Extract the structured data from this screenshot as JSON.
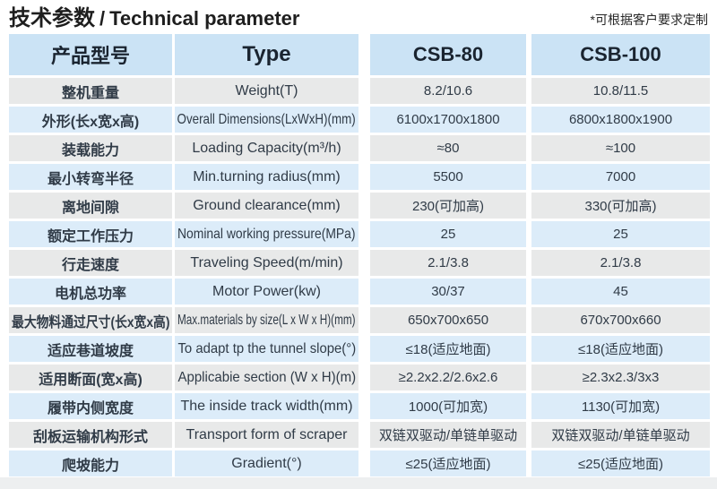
{
  "page": {
    "title_cn": "技术参数",
    "title_sep": "/",
    "title_en": "Technical parameter",
    "note": "*可根据客户要求定制"
  },
  "colors": {
    "header_bg": "#cbe3f5",
    "row_blue": "#dcecf9",
    "row_gray": "#e8e9e9",
    "gap_white": "#ffffff",
    "title_text": "#1e1e1e",
    "header_text": "#1a2430",
    "cell_text": "#303b47",
    "bottom_strip": "#edeff0"
  },
  "table": {
    "columns": [
      "产品型号",
      "Type",
      "CSB-80",
      "CSB-100"
    ],
    "rows": [
      {
        "cn": "整机重量",
        "en": "Weight(T)",
        "csb80": "8.2/10.6",
        "csb100": "10.8/11.5"
      },
      {
        "cn": "外形(长x宽x高)",
        "en": "Overall Dimensions(LxWxH)(mm)",
        "csb80": "6100x1700x1800",
        "csb100": "6800x1800x1900"
      },
      {
        "cn": "装载能力",
        "en": "Loading Capacity(m³/h)",
        "csb80": "≈80",
        "csb100": "≈100"
      },
      {
        "cn": "最小转弯半径",
        "en": "Min.turning radius(mm)",
        "csb80": "5500",
        "csb100": "7000"
      },
      {
        "cn": "离地间隙",
        "en": "Ground clearance(mm)",
        "csb80": "230(可加高)",
        "csb100": "330(可加高)"
      },
      {
        "cn": "额定工作压力",
        "en": "Nominal working pressure(MPa)",
        "csb80": "25",
        "csb100": "25"
      },
      {
        "cn": "行走速度",
        "en": "Traveling Speed(m/min)",
        "csb80": "2.1/3.8",
        "csb100": "2.1/3.8"
      },
      {
        "cn": "电机总功率",
        "en": "Motor Power(kw)",
        "csb80": "30/37",
        "csb100": "45"
      },
      {
        "cn": "最大物料通过尺寸(长x宽x高)",
        "en": "Max.materials by size(L x W x H)(mm)",
        "csb80": "650x700x650",
        "csb100": "670x700x660"
      },
      {
        "cn": "适应巷道坡度",
        "en": "To adapt tp the tunnel slope(°)",
        "csb80": "≤18(适应地面)",
        "csb100": "≤18(适应地面)"
      },
      {
        "cn": "适用断面(宽x高)",
        "en": "Applicabie section (W x H)(m)",
        "csb80": "≥2.2x2.2/2.6x2.6",
        "csb100": "≥2.3x2.3/3x3"
      },
      {
        "cn": "履带内侧宽度",
        "en": "The inside track width(mm)",
        "csb80": "1000(可加宽)",
        "csb100": "1130(可加宽)"
      },
      {
        "cn": "刮板运输机构形式",
        "en": "Transport form of scraper",
        "csb80": "双链双驱动/单链单驱动",
        "csb100": "双链双驱动/单链单驱动"
      },
      {
        "cn": "爬坡能力",
        "en": "Gradient(°)",
        "csb80": "≤25(适应地面)",
        "csb100": "≤25(适应地面)"
      }
    ]
  }
}
